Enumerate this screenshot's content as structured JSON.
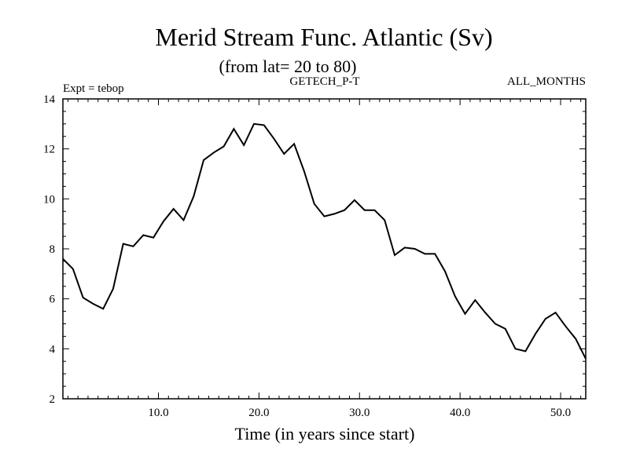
{
  "chart_data": {
    "type": "line",
    "title": "Merid Stream Func. Atlantic (Sv)",
    "subtitle": "(from lat= 20 to 80)",
    "left_label": "Expt = tebop",
    "center_label": "GETECH_P-T",
    "right_label": "ALL_MONTHS",
    "xlabel": "Time (in years since start)",
    "ylabel": "",
    "xlim": [
      0.5,
      52.5
    ],
    "ylim": [
      2,
      14
    ],
    "x_ticks": [
      10,
      20,
      30,
      40,
      50
    ],
    "x_tick_labels": [
      "10.0",
      "20.0",
      "30.0",
      "40.0",
      "50.0"
    ],
    "y_ticks": [
      2,
      4,
      6,
      8,
      10,
      12,
      14
    ],
    "y_tick_labels": [
      "2",
      "4",
      "6",
      "8",
      "10",
      "12",
      "14"
    ],
    "x_minor_step": 1,
    "y_minor_step": 0.5,
    "grid": false,
    "line_color": "#000000",
    "series": [
      {
        "name": "tebop",
        "x": [
          0.5,
          1.5,
          2.5,
          3.5,
          4.5,
          5.5,
          6.5,
          7.5,
          8.5,
          9.5,
          10.5,
          11.5,
          12.5,
          13.5,
          14.5,
          15.5,
          16.5,
          17.5,
          18.5,
          19.5,
          20.5,
          21.5,
          22.5,
          23.5,
          24.5,
          25.5,
          26.5,
          27.5,
          28.5,
          29.5,
          30.5,
          31.5,
          32.5,
          33.5,
          34.5,
          35.5,
          36.5,
          37.5,
          38.5,
          39.5,
          40.5,
          41.5,
          42.5,
          43.5,
          44.5,
          45.5,
          46.5,
          47.5,
          48.5,
          49.5,
          50.5,
          51.5,
          52.5
        ],
        "values": [
          7.6,
          7.2,
          6.05,
          5.8,
          5.6,
          6.4,
          8.2,
          8.1,
          8.55,
          8.45,
          9.1,
          9.6,
          9.15,
          10.1,
          11.55,
          11.85,
          12.1,
          12.8,
          12.15,
          13.0,
          12.95,
          12.4,
          11.8,
          12.2,
          11.1,
          9.8,
          9.3,
          9.4,
          9.55,
          9.95,
          9.55,
          9.55,
          9.15,
          7.75,
          8.05,
          8.0,
          7.8,
          7.8,
          7.1,
          6.1,
          5.4,
          5.95,
          5.45,
          5.0,
          4.8,
          4.0,
          3.9,
          4.6,
          5.2,
          5.45,
          4.9,
          4.4,
          3.6
        ]
      }
    ]
  }
}
